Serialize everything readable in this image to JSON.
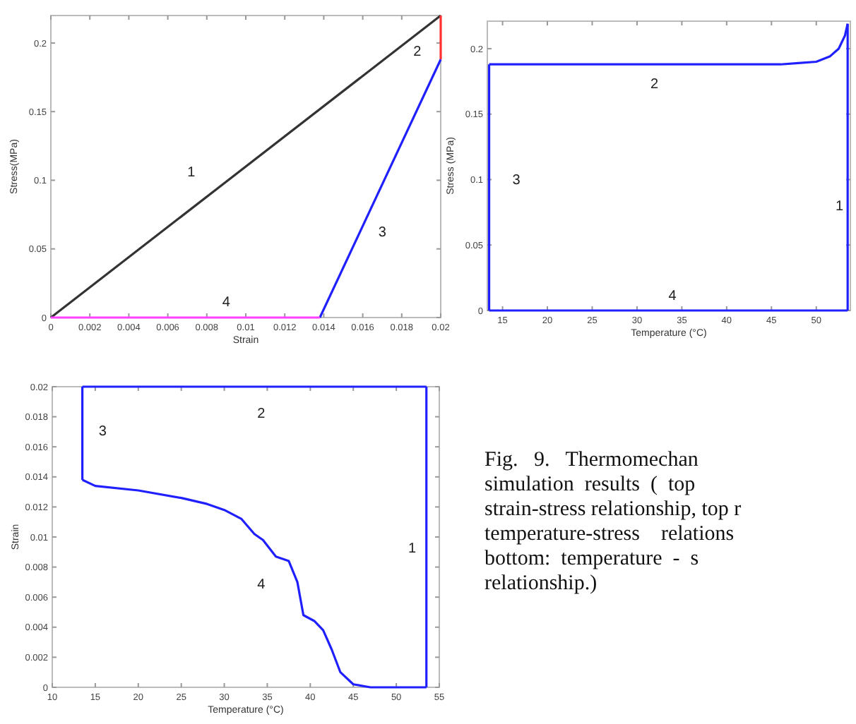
{
  "chart_data": [
    {
      "type": "line",
      "xlabel": "Strain",
      "ylabel": "Stress(MPa)",
      "xlim": [
        0,
        0.02
      ],
      "ylim": [
        0,
        0.22
      ],
      "xticks": [
        0,
        0.002,
        0.004,
        0.006,
        0.008,
        0.01,
        0.012,
        0.014,
        0.016,
        0.018,
        0.02
      ],
      "yticks": [
        0,
        0.05,
        0.1,
        0.15,
        0.2
      ],
      "series": [
        {
          "color": "#333333",
          "x": [
            0,
            0.02
          ],
          "values": [
            0,
            0.22
          ]
        },
        {
          "color": "#ff3030",
          "x": [
            0.02,
            0.02
          ],
          "values": [
            0.22,
            0.188
          ]
        },
        {
          "color": "#2020ff",
          "x": [
            0.02,
            0.0138
          ],
          "values": [
            0.188,
            0
          ]
        },
        {
          "color": "#ff40ff",
          "x": [
            0.0138,
            0
          ],
          "values": [
            0,
            0
          ]
        }
      ],
      "annotations": [
        "1",
        "2",
        "3",
        "4"
      ]
    },
    {
      "type": "line",
      "xlabel": "Temperature (°C)",
      "ylabel": "Stress (MPa)",
      "xlim": [
        13.3,
        53.8
      ],
      "ylim": [
        0,
        0.221
      ],
      "xticks": [
        15,
        20,
        25,
        30,
        35,
        40,
        45,
        50
      ],
      "yticks": [
        0,
        0.05,
        0.1,
        0.15,
        0.2
      ],
      "series": [
        {
          "color": "#2020ff",
          "x": [
            53.5,
            53.5
          ],
          "values": [
            0,
            0.219
          ]
        },
        {
          "color": "#2020ff",
          "x": [
            53.5,
            53.2,
            52.5,
            51.5,
            50,
            48,
            46,
            13.5
          ],
          "values": [
            0.219,
            0.21,
            0.2,
            0.194,
            0.19,
            0.189,
            0.188,
            0.188
          ]
        },
        {
          "color": "#2020ff",
          "x": [
            13.5,
            13.5
          ],
          "values": [
            0.188,
            0
          ]
        },
        {
          "color": "#2020ff",
          "x": [
            13.5,
            53.5
          ],
          "values": [
            0,
            0
          ]
        }
      ],
      "annotations": [
        "1",
        "2",
        "3",
        "4"
      ]
    },
    {
      "type": "line",
      "xlabel": "Temperature (°C)",
      "ylabel": "Strain",
      "xlim": [
        10,
        55
      ],
      "ylim": [
        0,
        0.02
      ],
      "xticks": [
        10,
        15,
        20,
        25,
        30,
        35,
        40,
        45,
        50,
        55
      ],
      "yticks": [
        0,
        0.002,
        0.004,
        0.006,
        0.008,
        0.01,
        0.012,
        0.014,
        0.016,
        0.018,
        0.02
      ],
      "series": [
        {
          "color": "#2020ff",
          "x": [
            53.5,
            53.5
          ],
          "values": [
            0,
            0.02
          ]
        },
        {
          "color": "#2020ff",
          "x": [
            53.5,
            13.5
          ],
          "values": [
            0.02,
            0.02
          ]
        },
        {
          "color": "#2020ff",
          "x": [
            13.5,
            13.5
          ],
          "values": [
            0.02,
            0.0138
          ]
        },
        {
          "color": "#2020ff",
          "x": [
            13.5,
            15,
            20,
            25,
            28,
            30,
            32,
            33.5,
            34.5,
            36,
            37.5,
            38.5,
            39.2,
            40.5,
            41.5,
            42.5,
            43.5,
            45,
            47,
            53.5
          ],
          "values": [
            0.0138,
            0.0134,
            0.0131,
            0.0126,
            0.0122,
            0.0118,
            0.0112,
            0.0102,
            0.0098,
            0.0087,
            0.0084,
            0.007,
            0.0048,
            0.0044,
            0.0038,
            0.0025,
            0.001,
            0.0002,
            0,
            0
          ]
        }
      ],
      "annotations": [
        "1",
        "2",
        "3",
        "4"
      ]
    },
    {
      "type": "other",
      "annotations": [
        "Fig.   9.   Thermomechan",
        "simulation  results  (  top",
        "strain-stress relationship, top r",
        "temperature-stress    relations",
        "bottom:  temperature  -  s",
        "relationship.)"
      ]
    }
  ]
}
